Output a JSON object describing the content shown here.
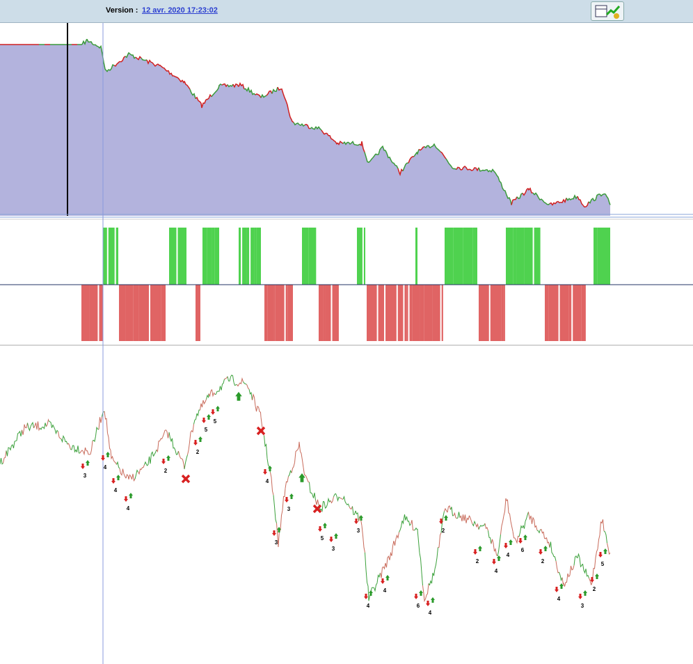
{
  "header": {
    "version_label": "Version :",
    "version_date": "12 avr. 2020 17:23:02"
  },
  "signals": [
    "3",
    "4",
    "4",
    "4",
    "2",
    "2",
    "5",
    "5",
    "4",
    "3",
    "3",
    "5",
    "3",
    "3",
    "4",
    "4",
    "6",
    "4",
    "2",
    "2",
    "4",
    "4",
    "6",
    "2",
    "4",
    "3",
    "2",
    "5"
  ]
}
